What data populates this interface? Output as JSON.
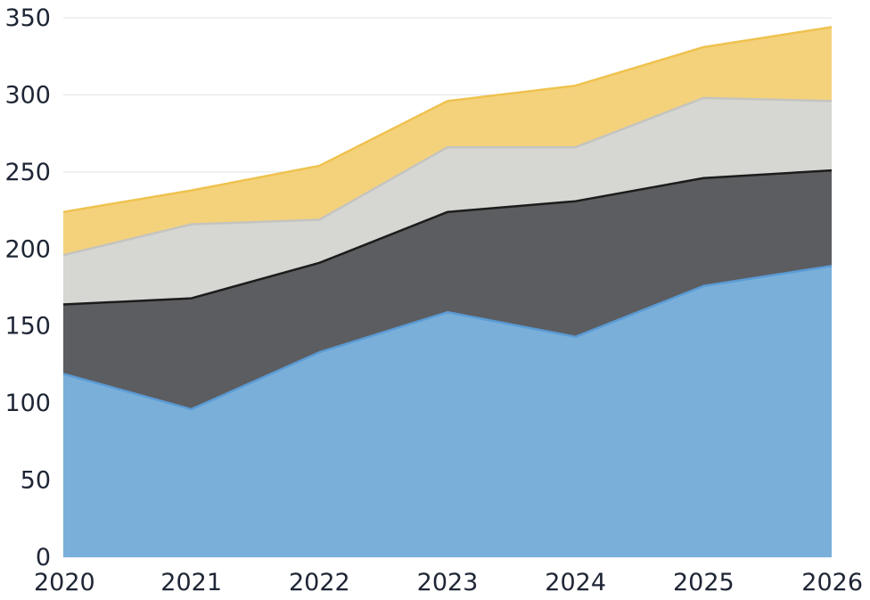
{
  "chart_data": {
    "type": "area",
    "stacked": true,
    "title": "",
    "xlabel": "",
    "ylabel": "",
    "x": [
      "2020",
      "2021",
      "2022",
      "2023",
      "2024",
      "2025",
      "2026"
    ],
    "ylim": [
      0,
      350
    ],
    "yticks": [
      0,
      50,
      100,
      150,
      200,
      250,
      300,
      350
    ],
    "grid": true,
    "legend": "none",
    "series": [
      {
        "color": "#7aafd9",
        "line_color": "#5a9bd5",
        "values": [
          119,
          96,
          133,
          159,
          143,
          176,
          189
        ]
      },
      {
        "color": "#5c5d60",
        "line_color": "#1c1c1c",
        "values": [
          45,
          72,
          58,
          65,
          88,
          70,
          62
        ]
      },
      {
        "color": "#d6d6d2",
        "line_color": "#c4c4c0",
        "values": [
          32,
          48,
          28,
          42,
          35,
          52,
          45
        ]
      },
      {
        "color": "#f4d27c",
        "line_color": "#efc24f",
        "values": [
          28,
          22,
          35,
          30,
          40,
          33,
          48
        ]
      }
    ]
  }
}
